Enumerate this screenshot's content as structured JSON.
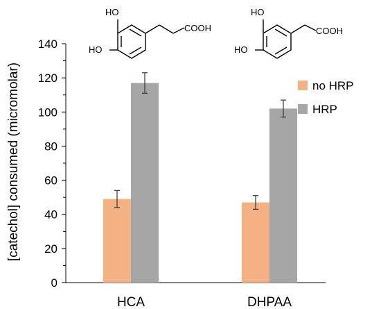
{
  "chart_data": {
    "type": "bar",
    "categories": [
      "HCA",
      "DHPAA"
    ],
    "series": [
      {
        "name": "no HRP",
        "color": "#F4B183",
        "values": [
          49,
          47
        ],
        "errors": [
          5,
          4
        ]
      },
      {
        "name": "HRP",
        "color": "#A6A6A6",
        "values": [
          117,
          102
        ],
        "errors": [
          6,
          5
        ]
      }
    ],
    "ylabel": "[catechol] consumed (micromolar)",
    "ylim": [
      0,
      140
    ],
    "yticks": [
      0,
      20,
      40,
      60,
      80,
      100,
      120,
      140
    ],
    "grid": false,
    "legend": "right",
    "structures": [
      {
        "hydroxyl_top": "HO",
        "hydroxyl_left": "HO",
        "acid": "COOH"
      },
      {
        "hydroxyl_top": "HO",
        "hydroxyl_left": "HO",
        "acid": "COOH"
      }
    ]
  }
}
